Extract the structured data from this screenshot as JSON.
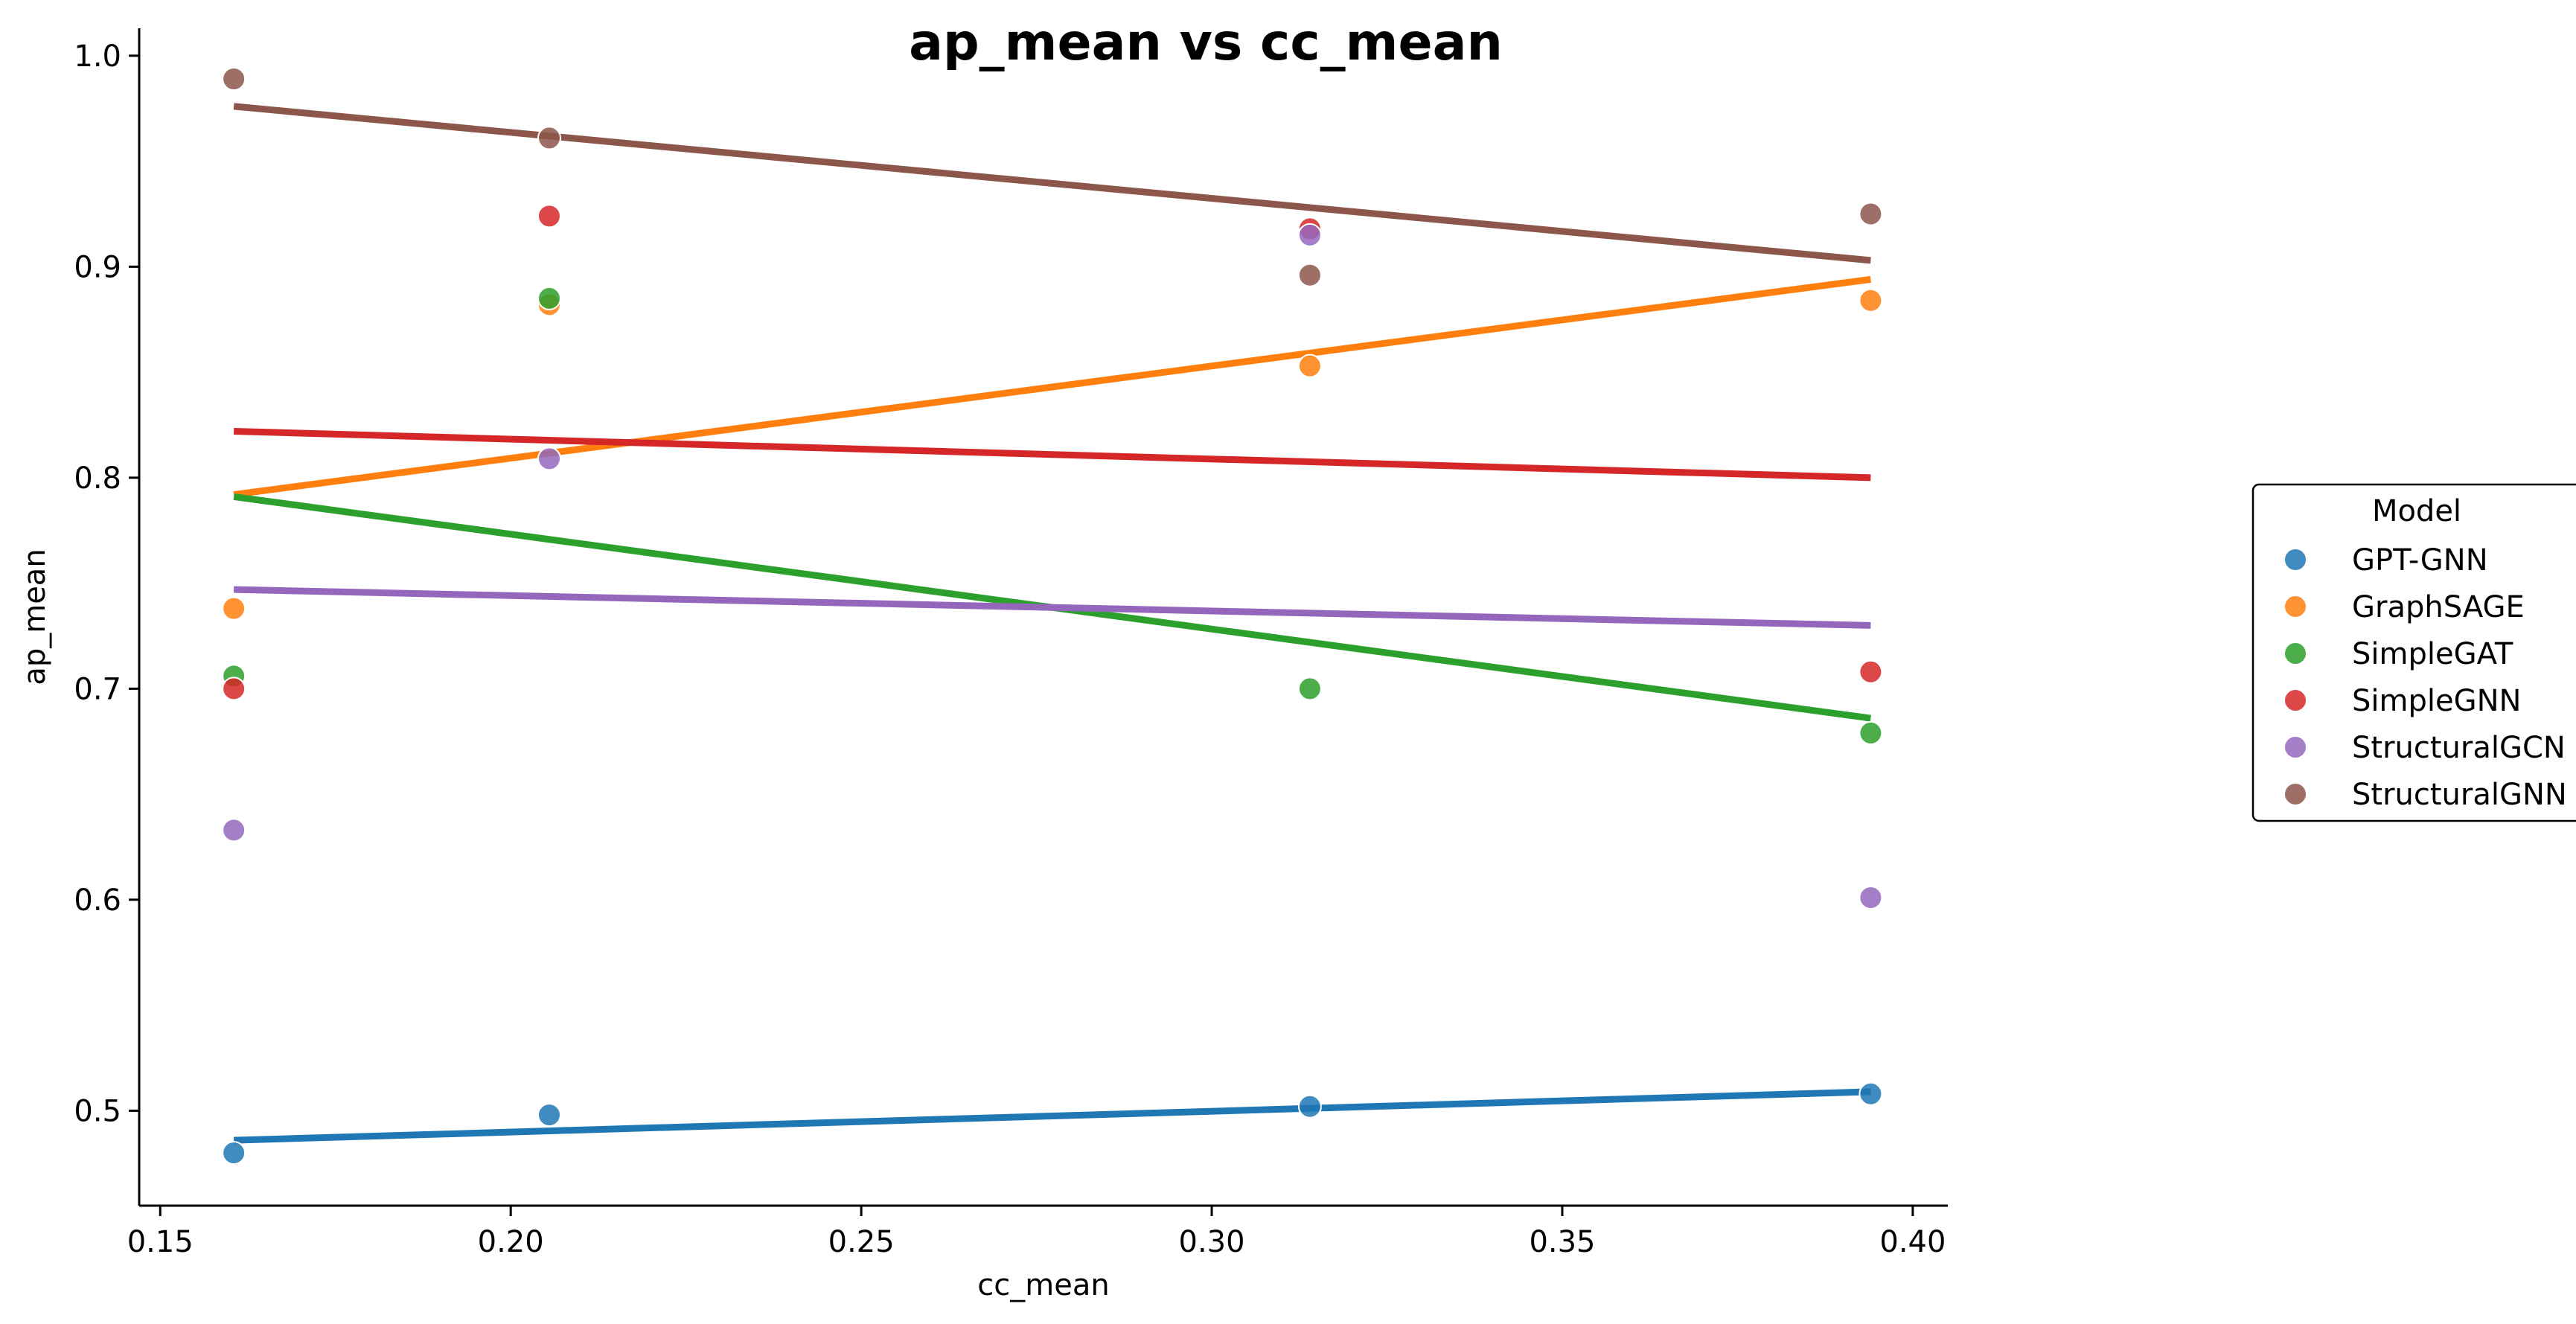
{
  "chart_data": {
    "type": "scatter",
    "title": "ap_mean vs cc_mean",
    "xlabel": "cc_mean",
    "ylabel": "ap_mean",
    "xlim": [
      0.147,
      0.405
    ],
    "ylim": [
      0.455,
      1.013
    ],
    "xticks": [
      0.15,
      0.2,
      0.25,
      0.3,
      0.35,
      0.4
    ],
    "xtick_labels": [
      "0.15",
      "0.20",
      "0.25",
      "0.30",
      "0.35",
      "0.40"
    ],
    "yticks": [
      0.5,
      0.6,
      0.7,
      0.8,
      0.9,
      1.0
    ],
    "ytick_labels": [
      "0.5",
      "0.6",
      "0.7",
      "0.8",
      "0.9",
      "1.0"
    ],
    "grid": false,
    "legend": {
      "title": "Model",
      "placement": "right"
    },
    "x": [
      0.1605,
      0.2055,
      0.314,
      0.394
    ],
    "series": [
      {
        "name": "GPT-GNN",
        "color": "#1f77b4",
        "values": [
          0.48,
          0.498,
          0.502,
          0.508
        ],
        "fit": [
          0.486,
          0.509
        ]
      },
      {
        "name": "GraphSAGE",
        "color": "#ff7f0e",
        "values": [
          0.738,
          0.882,
          0.853,
          0.884
        ],
        "fit": [
          0.792,
          0.894
        ]
      },
      {
        "name": "SimpleGAT",
        "color": "#2ca02c",
        "values": [
          0.706,
          0.885,
          0.7,
          0.679
        ],
        "fit": [
          0.791,
          0.686
        ]
      },
      {
        "name": "SimpleGNN",
        "color": "#d62728",
        "values": [
          0.7,
          0.924,
          0.918,
          0.708
        ],
        "fit": [
          0.822,
          0.8
        ]
      },
      {
        "name": "StructuralGCN",
        "color": "#9467bd",
        "values": [
          0.633,
          0.809,
          0.915,
          0.601
        ],
        "fit": [
          0.747,
          0.73
        ]
      },
      {
        "name": "StructuralGNN",
        "color": "#8c564b",
        "values": [
          0.989,
          0.961,
          0.896,
          0.925
        ],
        "fit": [
          0.976,
          0.903
        ]
      }
    ]
  }
}
